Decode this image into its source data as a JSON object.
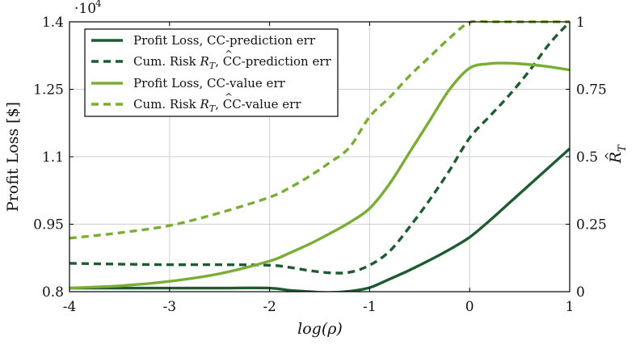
{
  "chart_data": {
    "type": "line",
    "title": "",
    "xlabel": "log(ρ)",
    "ylabel": "Profit Loss [$]",
    "y2label": "R̂_T",
    "y2label_main": "R",
    "y2label_hat": "^",
    "y2label_sub": "T",
    "xlim": [
      -4,
      1
    ],
    "ylim": [
      0.8,
      1.4
    ],
    "y2lim": [
      0,
      1
    ],
    "y_multiplier_base": "·10",
    "y_multiplier_exp": "4",
    "grid": true,
    "legend_position": "top-left",
    "x_ticks": [
      -4,
      -3,
      -2,
      -1,
      0,
      1
    ],
    "x_tick_labels": [
      "-4",
      "-3",
      "-2",
      "-1",
      "0",
      "1"
    ],
    "y_ticks": [
      0.8,
      0.95,
      1.1,
      1.25,
      1.4
    ],
    "y_tick_labels": [
      "0.8",
      "0.95",
      "1.1",
      "1.25",
      "1.4"
    ],
    "y2_ticks": [
      0,
      0.25,
      0.5,
      0.75,
      1
    ],
    "y2_tick_labels": [
      "0",
      "0.25",
      "0.5",
      "0.75",
      "1"
    ],
    "series": [
      {
        "name": "Profit Loss, CC-prediction err",
        "axis": "left",
        "color": "#1e5a32",
        "dash": "solid",
        "x": [
          -4,
          -3.5,
          -3,
          -2.5,
          -2,
          -1.8,
          -1.6,
          -1.4,
          -1.2,
          -1.0,
          -0.8,
          -0.6,
          -0.4,
          -0.2,
          0,
          0.2,
          0.4,
          0.6,
          0.8,
          1
        ],
        "y": [
          0.808,
          0.808,
          0.808,
          0.808,
          0.808,
          0.803,
          0.8,
          0.798,
          0.801,
          0.809,
          0.828,
          0.848,
          0.87,
          0.894,
          0.921,
          0.958,
          0.998,
          1.038,
          1.078,
          1.118
        ]
      },
      {
        "name": "Cum. Risk R̂_T, CC-prediction err",
        "name_parts": [
          "Cum. Risk ",
          "R",
          "^",
          "T",
          ", CC-prediction err"
        ],
        "axis": "right",
        "color": "#1e5a32",
        "dash": "dashed",
        "x": [
          -4,
          -3.5,
          -3,
          -2.5,
          -2,
          -1.8,
          -1.6,
          -1.4,
          -1.2,
          -1.0,
          -0.8,
          -0.6,
          -0.4,
          -0.2,
          0,
          0.2,
          0.4,
          0.6,
          0.8,
          1
        ],
        "y": [
          0.105,
          0.102,
          0.1,
          0.1,
          0.098,
          0.09,
          0.078,
          0.07,
          0.072,
          0.098,
          0.15,
          0.24,
          0.34,
          0.45,
          0.57,
          0.65,
          0.73,
          0.82,
          0.92,
          1.0
        ]
      },
      {
        "name": "Profit Loss, CC-value err",
        "axis": "left",
        "color": "#7aad34",
        "dash": "solid",
        "x": [
          -4,
          -3.5,
          -3,
          -2.5,
          -2,
          -1.8,
          -1.6,
          -1.4,
          -1.2,
          -1.0,
          -0.8,
          -0.6,
          -0.4,
          -0.2,
          0,
          0.2,
          0.4,
          0.6,
          0.8,
          1
        ],
        "y": [
          0.808,
          0.813,
          0.823,
          0.84,
          0.868,
          0.886,
          0.906,
          0.929,
          0.954,
          0.985,
          1.04,
          1.11,
          1.18,
          1.25,
          1.297,
          1.307,
          1.308,
          1.305,
          1.3,
          1.293
        ]
      },
      {
        "name": "Cum. Risk R̂_T, CC-value err",
        "name_parts": [
          "Cum. Risk ",
          "R",
          "^",
          "T",
          ", CC-value err"
        ],
        "axis": "right",
        "color": "#7aad34",
        "dash": "dashed",
        "x": [
          -4,
          -3.5,
          -3,
          -2.5,
          -2,
          -1.8,
          -1.6,
          -1.4,
          -1.2,
          -1.0,
          -0.8,
          -0.6,
          -0.4,
          -0.2,
          0,
          0.2,
          0.4,
          0.6,
          0.8,
          1
        ],
        "y": [
          0.198,
          0.218,
          0.245,
          0.292,
          0.35,
          0.385,
          0.428,
          0.478,
          0.535,
          0.648,
          0.72,
          0.8,
          0.87,
          0.94,
          0.998,
          1.0,
          1.0,
          1.0,
          1.0,
          1.0
        ]
      }
    ]
  }
}
